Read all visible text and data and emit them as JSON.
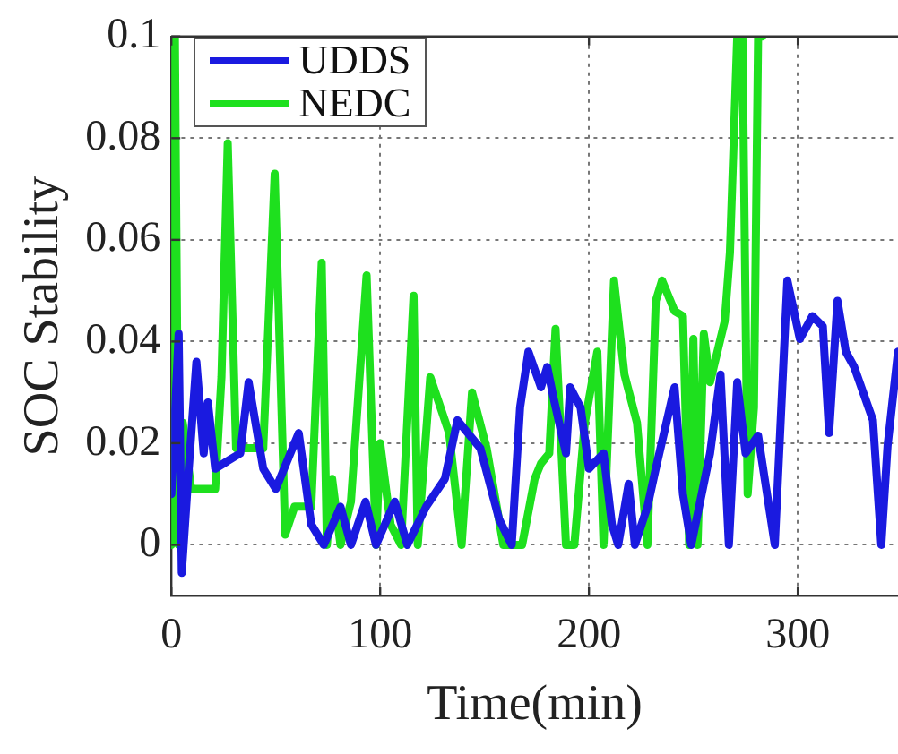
{
  "chart_data": {
    "type": "line",
    "xlabel": "Time(min)",
    "ylabel": "SOC Stability",
    "xlim": [
      0,
      348
    ],
    "ylim": [
      -0.01,
      0.1
    ],
    "xticks": [
      0,
      100,
      200,
      300
    ],
    "yticks": [
      0,
      0.02,
      0.04,
      0.06,
      0.08,
      0.1
    ],
    "grid": true,
    "legend": "top left",
    "line_style": "solid",
    "marker": "none",
    "series": [
      {
        "name": "UDDS",
        "color": "#1a1ae0",
        "x": [
          0,
          3.5,
          5,
          8,
          12,
          15.5,
          17.5,
          21,
          33,
          37,
          44,
          50,
          61,
          67,
          73,
          81,
          86,
          93,
          98,
          107,
          113,
          122,
          131,
          137,
          148,
          157,
          163,
          167,
          171,
          177,
          180,
          183,
          189,
          191,
          196,
          200,
          207,
          211,
          214,
          219,
          222,
          228,
          232,
          241,
          245,
          249,
          258,
          263,
          267,
          271,
          275,
          281,
          289,
          295,
          301,
          307,
          312,
          315,
          319,
          323,
          327,
          336,
          340,
          343,
          348
        ],
        "values": [
          0.01,
          0.0415,
          -0.0055,
          0.013,
          0.036,
          0.018,
          0.028,
          0.015,
          0.018,
          0.032,
          0.015,
          0.011,
          0.022,
          0.004,
          0,
          0.0075,
          0,
          0.0085,
          0,
          0.0085,
          0,
          0.0075,
          0.013,
          0.0245,
          0.019,
          0.005,
          0,
          0.027,
          0.038,
          0.031,
          0.035,
          0.029,
          0.018,
          0.031,
          0.027,
          0.015,
          0.018,
          0.004,
          0,
          0.012,
          0,
          0.0075,
          0.015,
          0.031,
          0.01,
          0,
          0.018,
          0.0335,
          0,
          0.032,
          0.018,
          0.0215,
          0,
          0.052,
          0.0405,
          0.045,
          0.043,
          0.022,
          0.048,
          0.038,
          0.035,
          0.0245,
          0,
          0.0195,
          0.038
        ]
      },
      {
        "name": "NEDC",
        "color": "#1ee01e",
        "x": [
          0,
          1.7,
          3.5,
          5.5,
          9.5,
          21,
          24,
          27,
          31,
          44,
          49.5,
          54.5,
          59,
          67,
          72,
          74.5,
          77,
          81,
          86,
          93.5,
          98,
          100,
          105,
          110,
          116,
          118,
          124,
          133,
          139,
          144,
          151,
          159,
          168,
          174,
          177,
          181,
          184,
          189,
          193,
          198,
          204,
          207,
          212,
          217,
          223,
          228,
          232,
          235,
          241,
          245,
          248,
          250,
          252,
          255,
          258,
          265,
          267.5,
          271,
          273.5,
          276,
          279,
          281,
          283
        ],
        "values": [
          0,
          0.1,
          0,
          0.024,
          0.011,
          0.011,
          0.033,
          0.079,
          0.019,
          0.019,
          0.073,
          0.002,
          0.0075,
          0.0075,
          0.0555,
          0,
          0.013,
          0,
          0.0085,
          0.053,
          0,
          0.02,
          0.004,
          0,
          0.049,
          0,
          0.033,
          0.022,
          0,
          0.03,
          0.019,
          0,
          0,
          0.013,
          0.016,
          0.018,
          0.0425,
          0,
          0,
          0.024,
          0.038,
          0,
          0.052,
          0.0335,
          0.024,
          0,
          0.048,
          0.052,
          0.046,
          0.045,
          0,
          0.0405,
          0,
          0.0415,
          0.032,
          0.044,
          0.0575,
          0.1,
          0.1,
          0.01,
          0.027,
          0.1,
          0.1
        ]
      }
    ]
  }
}
